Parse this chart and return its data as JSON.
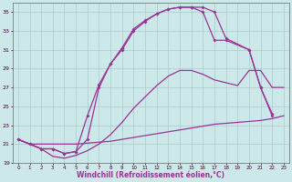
{
  "xlabel": "Windchill (Refroidissement éolien,°C)",
  "bg_color": "#cce8e8",
  "line_color": "#993399",
  "grid_color": "#aacccc",
  "xlim": [
    -0.5,
    23.5
  ],
  "ylim": [
    19,
    36
  ],
  "yticks": [
    19,
    21,
    23,
    25,
    27,
    29,
    31,
    33,
    35
  ],
  "xticks": [
    0,
    1,
    2,
    3,
    4,
    5,
    6,
    7,
    8,
    9,
    10,
    11,
    12,
    13,
    14,
    15,
    16,
    17,
    18,
    19,
    20,
    21,
    22,
    23
  ],
  "s1_x": [
    0,
    1,
    2,
    3,
    4,
    5,
    6,
    7,
    8,
    9,
    10,
    11,
    12,
    13,
    14,
    15,
    16,
    17,
    18,
    19,
    20,
    21,
    22,
    23
  ],
  "s1_y": [
    21.5,
    21.0,
    21.0,
    21.0,
    21.0,
    21.0,
    21.1,
    21.2,
    21.3,
    21.5,
    21.7,
    21.9,
    22.1,
    22.3,
    22.5,
    22.7,
    22.9,
    23.1,
    23.2,
    23.3,
    23.4,
    23.5,
    23.7,
    24.0
  ],
  "s2_x": [
    0,
    1,
    2,
    3,
    4,
    5,
    6,
    7,
    8,
    9,
    10,
    11,
    12,
    13,
    14,
    15,
    16,
    17,
    18,
    19,
    20,
    21,
    22,
    23
  ],
  "s2_y": [
    21.5,
    21.0,
    20.5,
    19.7,
    19.5,
    19.8,
    20.3,
    21.0,
    22.0,
    23.3,
    24.8,
    26.0,
    27.2,
    28.2,
    28.8,
    28.8,
    28.4,
    27.8,
    27.5,
    27.2,
    28.8,
    28.8,
    27.0,
    27.0
  ],
  "s3_x": [
    0,
    1,
    2,
    3,
    4,
    5,
    6,
    7,
    8,
    9,
    10,
    11,
    12,
    13,
    14,
    15,
    16,
    17,
    18,
    20,
    21,
    22
  ],
  "s3_y": [
    21.5,
    21.0,
    20.5,
    20.5,
    20.0,
    20.2,
    24.0,
    27.3,
    29.5,
    31.2,
    33.2,
    34.1,
    34.8,
    35.3,
    35.5,
    35.5,
    35.5,
    35.0,
    32.2,
    31.0,
    27.0,
    24.2
  ],
  "s4_x": [
    0,
    1,
    2,
    3,
    4,
    5,
    6,
    7,
    8,
    9,
    10,
    11,
    12,
    13,
    14,
    15,
    16,
    17,
    18,
    20,
    21,
    22
  ],
  "s4_y": [
    21.5,
    21.0,
    20.5,
    20.5,
    20.0,
    20.2,
    21.5,
    27.0,
    29.5,
    31.0,
    33.0,
    34.0,
    34.8,
    35.3,
    35.5,
    35.5,
    35.0,
    32.0,
    32.0,
    31.0,
    27.0,
    24.0
  ]
}
